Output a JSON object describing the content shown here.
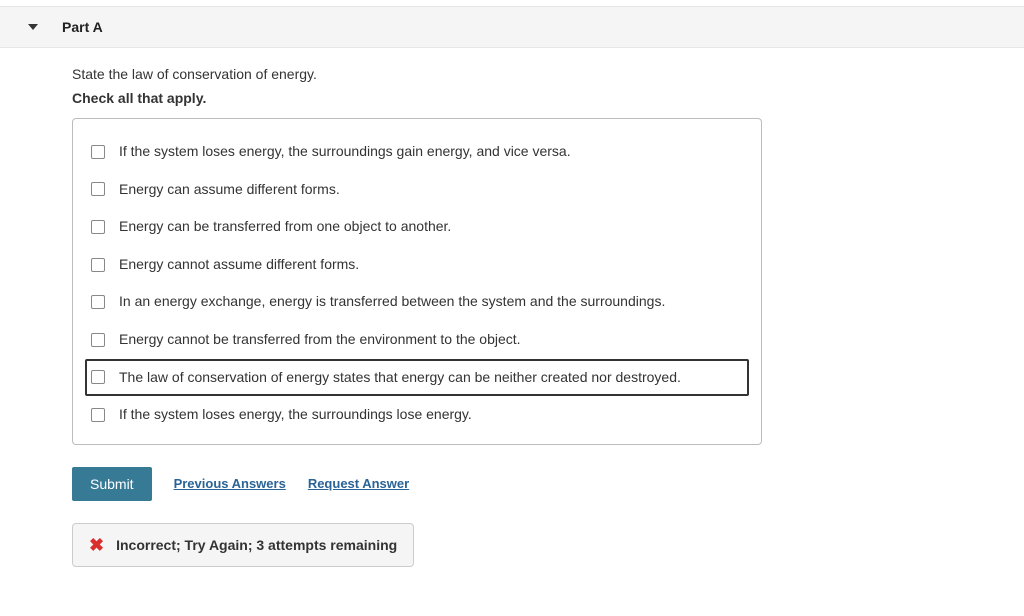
{
  "part": {
    "title": "Part A"
  },
  "question": {
    "text": "State the law of conservation of energy.",
    "instruction": "Check all that apply."
  },
  "options": [
    {
      "label": "If the system loses energy, the surroundings gain energy, and vice versa.",
      "highlighted": false
    },
    {
      "label": "Energy can assume different forms.",
      "highlighted": false
    },
    {
      "label": "Energy can be transferred from one object to another.",
      "highlighted": false
    },
    {
      "label": "Energy cannot assume different forms.",
      "highlighted": false
    },
    {
      "label": "In an energy exchange, energy is transferred between the system and the surroundings.",
      "highlighted": false
    },
    {
      "label": "Energy cannot be transferred from the environment to the object.",
      "highlighted": false
    },
    {
      "label": "The law of conservation of energy states that energy can be neither created nor destroyed.",
      "highlighted": true
    },
    {
      "label": "If the system loses energy, the surroundings lose energy.",
      "highlighted": false
    }
  ],
  "actions": {
    "submit": "Submit",
    "previous": "Previous Answers",
    "request": "Request Answer"
  },
  "feedback": {
    "text": "Incorrect; Try Again; 3 attempts remaining"
  },
  "colors": {
    "submit_bg": "#367a96",
    "link": "#2a6496",
    "error": "#d9302e",
    "header_bg": "#f5f5f6",
    "feedback_bg": "#f5f5f5",
    "border": "#bcbcbc"
  }
}
